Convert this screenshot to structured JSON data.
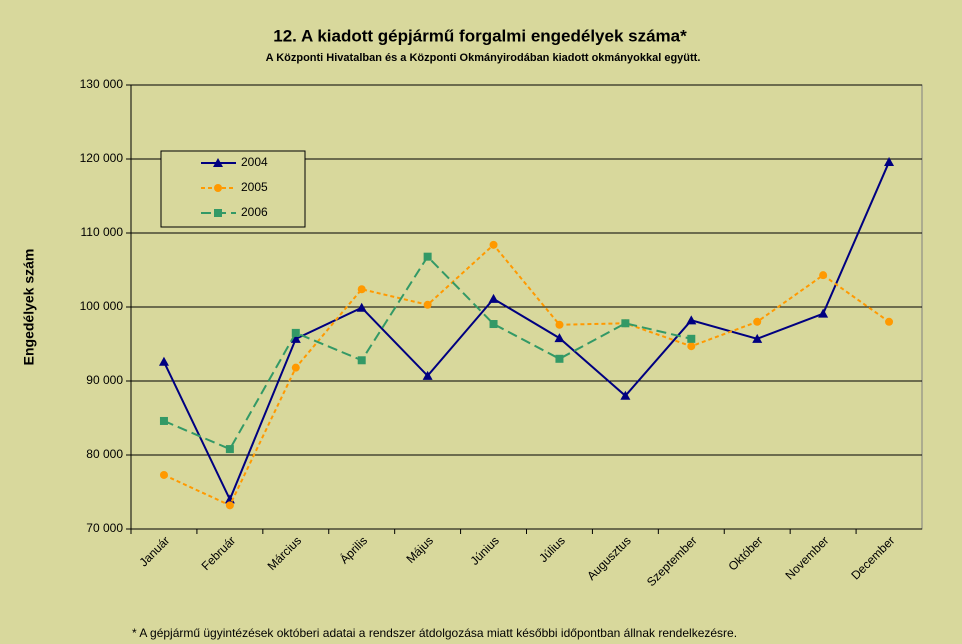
{
  "chart_data": {
    "type": "line",
    "title": "12. A  kiadott gépjármű forgalmi engedélyek száma*",
    "subtitle": "A  Központi Hivatalban és a Központi Okmányirodában kiadott okmányokkal együtt.",
    "y_label": "Engedélyek szám",
    "footnote": "* A gépjármű ügyintézések októberi adatai a rendszer átdolgozása miatt későbbi időpontban állnak rendelkezésre.",
    "categories": [
      "Január",
      "Február",
      "Március",
      "Április",
      "Május",
      "Június",
      "Július",
      "Augusztus",
      "Szeptember",
      "Október",
      "November",
      "December"
    ],
    "series": [
      {
        "name": "2004",
        "color": "#000080",
        "marker": "triangle",
        "dash": "solid",
        "values": [
          92600,
          74000,
          95700,
          99900,
          90700,
          101100,
          95800,
          88000,
          98200,
          95700,
          99100,
          119600
        ]
      },
      {
        "name": "2005",
        "color": "#ff9900",
        "marker": "circle",
        "dash": "dotted",
        "values": [
          77300,
          73200,
          91800,
          102400,
          100300,
          108400,
          97600,
          97800,
          94700,
          98000,
          104300,
          98000
        ]
      },
      {
        "name": "2006",
        "color": "#339966",
        "marker": "square",
        "dash": "dashed",
        "values": [
          84600,
          80800,
          96500,
          92800,
          106800,
          97700,
          93000,
          97800,
          95700,
          null,
          null,
          null
        ]
      }
    ],
    "ylim": [
      70000,
      130000
    ],
    "yticks": [
      {
        "value": 70000,
        "label": "70 000"
      },
      {
        "value": 80000,
        "label": "80 000"
      },
      {
        "value": 90000,
        "label": "90 000"
      },
      {
        "value": 100000,
        "label": "100 000"
      },
      {
        "value": 110000,
        "label": "110 000"
      },
      {
        "value": 120000,
        "label": "120 000"
      },
      {
        "value": 130000,
        "label": "130 000"
      }
    ],
    "grid": true,
    "legend": "upper left"
  }
}
